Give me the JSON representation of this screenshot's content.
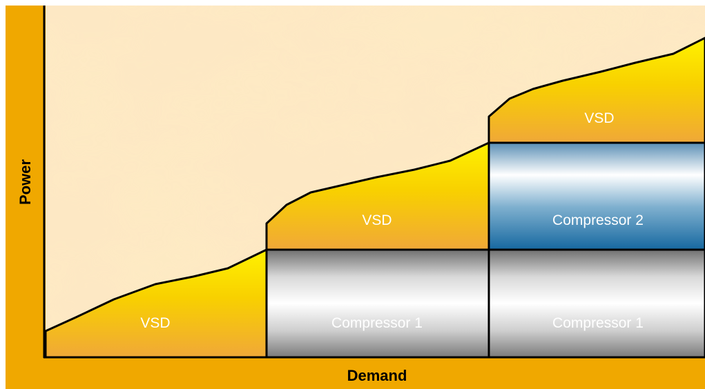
{
  "axes": {
    "x_title": "Demand",
    "y_title": "Power"
  },
  "regions": {
    "vsd_1": "VSD",
    "vsd_2": "VSD",
    "vsd_3": "VSD",
    "compressor_1_a": "Compressor 1",
    "compressor_1_b": "Compressor 1",
    "compressor_2": "Compressor 2"
  },
  "colors": {
    "frame": "#f0a800",
    "vsd_top": "#ffee00",
    "vsd_bottom": "#f0a830",
    "compressor_grey": "#9a9a9a",
    "compressor_blue": "#1e6fa0",
    "outline": "#000000"
  }
}
